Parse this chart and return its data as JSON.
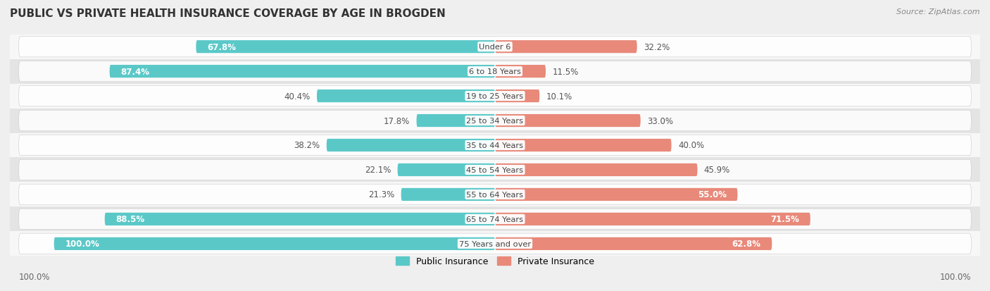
{
  "title": "PUBLIC VS PRIVATE HEALTH INSURANCE COVERAGE BY AGE IN BROGDEN",
  "source": "Source: ZipAtlas.com",
  "categories": [
    "Under 6",
    "6 to 18 Years",
    "19 to 25 Years",
    "25 to 34 Years",
    "35 to 44 Years",
    "45 to 54 Years",
    "55 to 64 Years",
    "65 to 74 Years",
    "75 Years and over"
  ],
  "public_values": [
    67.8,
    87.4,
    40.4,
    17.8,
    38.2,
    22.1,
    21.3,
    88.5,
    100.0
  ],
  "private_values": [
    32.2,
    11.5,
    10.1,
    33.0,
    40.0,
    45.9,
    55.0,
    71.5,
    62.8
  ],
  "public_color": "#5bc8c8",
  "private_color": "#e8897a",
  "bg_color": "#efefef",
  "row_bg_light": "#f7f7f7",
  "row_bg_dark": "#e4e4e4",
  "title_fontsize": 11,
  "bar_label_fontsize": 8.5,
  "legend_fontsize": 9,
  "source_fontsize": 8,
  "max_value": 100.0
}
